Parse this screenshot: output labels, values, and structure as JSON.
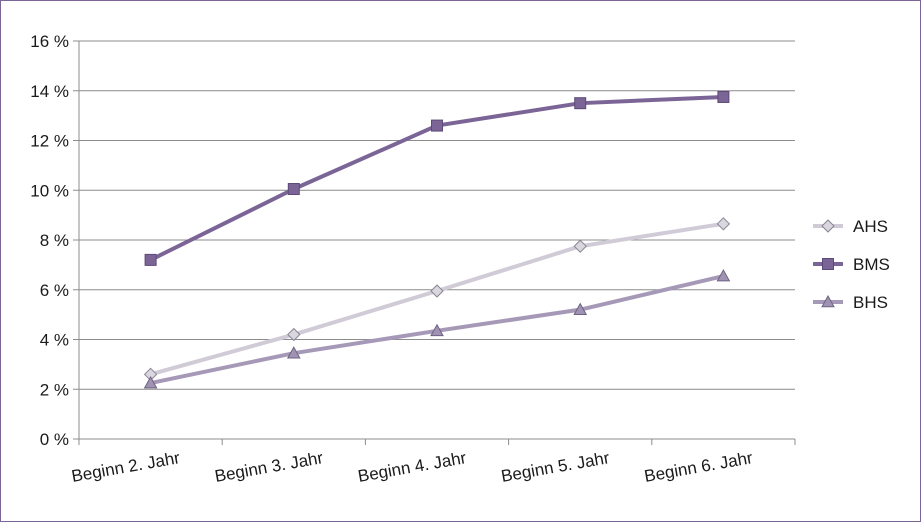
{
  "chart_data": {
    "type": "line",
    "categories": [
      "Beginn 2. Jahr",
      "Beginn 3. Jahr",
      "Beginn 4. Jahr",
      "Beginn 5. Jahr",
      "Beginn 6. Jahr"
    ],
    "ylim": [
      0,
      16
    ],
    "yticks": [
      0,
      2,
      4,
      6,
      8,
      10,
      12,
      14,
      16
    ],
    "ytick_labels": [
      "0 %",
      "2 %",
      "4 %",
      "6 %",
      "8 %",
      "10 %",
      "12 %",
      "14 %",
      "16 %"
    ],
    "grid": true,
    "legend_position": "right",
    "series": [
      {
        "name": "AHS",
        "values": [
          2.6,
          4.2,
          5.95,
          7.75,
          8.65
        ],
        "color": "#d0cbd6",
        "marker": "diamond",
        "marker_fill": "#d9d6de",
        "marker_stroke": "#8a8494"
      },
      {
        "name": "BMS",
        "values": [
          7.2,
          10.05,
          12.6,
          13.5,
          13.75
        ],
        "color": "#7b6596",
        "marker": "square",
        "marker_fill": "#7b6596",
        "marker_stroke": "#5e4a78"
      },
      {
        "name": "BHS",
        "values": [
          2.25,
          3.45,
          4.35,
          5.2,
          6.55
        ],
        "color": "#a699b8",
        "marker": "triangle",
        "marker_fill": "#9f92b2",
        "marker_stroke": "#6e6282"
      }
    ]
  }
}
